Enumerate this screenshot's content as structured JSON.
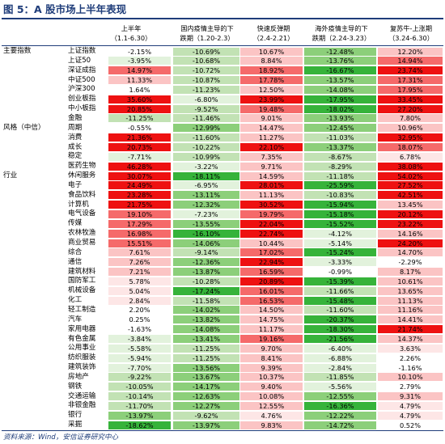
{
  "title": "图 5：A 股市场上半年表现",
  "source": "资料来源：Wind，安信证券研究中心",
  "colors": {
    "strong_red": "#ee1111",
    "mid_red": "#f56a6a",
    "light_red": "#fbc4c4",
    "pale_red": "#fde6e6",
    "white": "#ffffff",
    "pale_green": "#e2f2dc",
    "light_green": "#c2e2b4",
    "mid_green": "#8ccf7a",
    "strong_green": "#36b33a"
  },
  "chart_data": {
    "type": "table",
    "columns": [
      {
        "line1": "上半年",
        "line2": "（1.1-6.30）"
      },
      {
        "line1": "国内疫情主导的下",
        "line2": "跌期（1.20-2.3）"
      },
      {
        "line1": "快速反弹期",
        "line2": "（2.4-2.21）"
      },
      {
        "line1": "海外疫情主导的下",
        "line2": "跌期（2.24-3.23）"
      },
      {
        "line1": "复苏牛-上涨期",
        "line2": "（3.24-6.30）"
      }
    ],
    "groups": [
      {
        "label": "主要指数",
        "row": 0
      },
      {
        "label": "风格（中信）",
        "row": 8
      },
      {
        "label": "行业",
        "row": 13
      }
    ],
    "rows": [
      {
        "name": "上证指数",
        "values": [
          "-2.15%",
          "-10.69%",
          "10.67%",
          "-12.48%",
          "12.20%"
        ],
        "nums": [
          -2.15,
          -10.69,
          10.67,
          -12.48,
          12.2
        ]
      },
      {
        "name": "上证50",
        "values": [
          "-3.95%",
          "-10.68%",
          "8.84%",
          "-13.76%",
          "14.94%"
        ],
        "nums": [
          -3.95,
          -10.68,
          8.84,
          -13.76,
          14.94
        ]
      },
      {
        "name": "深证成指",
        "values": [
          "14.97%",
          "-10.72%",
          "18.92%",
          "-16.67%",
          "23.74%"
        ],
        "nums": [
          14.97,
          -10.72,
          18.92,
          -16.67,
          23.74
        ]
      },
      {
        "name": "中证500",
        "values": [
          "11.33%",
          "-10.87%",
          "17.78%",
          "-13.57%",
          "17.31%"
        ],
        "nums": [
          11.33,
          -10.87,
          17.78,
          -13.57,
          17.31
        ]
      },
      {
        "name": "沪深300",
        "values": [
          "1.64%",
          "-11.23%",
          "12.50%",
          "-14.08%",
          "17.95%"
        ],
        "nums": [
          1.64,
          -11.23,
          12.5,
          -14.08,
          17.95
        ]
      },
      {
        "name": "创业板指",
        "values": [
          "35.60%",
          "-6.80%",
          "23.99%",
          "-17.95%",
          "33.45%"
        ],
        "nums": [
          35.6,
          -6.8,
          23.99,
          -17.95,
          33.45
        ]
      },
      {
        "name": "中小板指",
        "values": [
          "20.85%",
          "-9.52%",
          "19.48%",
          "-18.02%",
          "27.20%"
        ],
        "nums": [
          20.85,
          -9.52,
          19.48,
          -18.02,
          27.2
        ]
      },
      {
        "name": "金融",
        "values": [
          "-11.25%",
          "-11.46%",
          "9.01%",
          "-13.93%",
          "7.80%"
        ],
        "nums": [
          -11.25,
          -11.46,
          9.01,
          -13.93,
          7.8
        ]
      },
      {
        "name": "周期",
        "values": [
          "-0.55%",
          "-12.99%",
          "14.47%",
          "-12.45%",
          "10.96%"
        ],
        "nums": [
          -0.55,
          -12.99,
          14.47,
          -12.45,
          10.96
        ]
      },
      {
        "name": "消费",
        "values": [
          "21.36%",
          "-11.60%",
          "11.27%",
          "-11.03%",
          "32.95%"
        ],
        "nums": [
          21.36,
          -11.6,
          11.27,
          -11.03,
          32.95
        ]
      },
      {
        "name": "成长",
        "values": [
          "20.73%",
          "-10.22%",
          "22.10%",
          "-13.37%",
          "18.07%"
        ],
        "nums": [
          20.73,
          -10.22,
          22.1,
          -13.37,
          18.07
        ]
      },
      {
        "name": "稳定",
        "values": [
          "-7.71%",
          "-10.99%",
          "7.35%",
          "-8.67%",
          "6.78%"
        ],
        "nums": [
          -7.71,
          -10.99,
          7.35,
          -8.67,
          6.78
        ]
      },
      {
        "name": "医药生物",
        "values": [
          "46.28%",
          "-3.22%",
          "9.71%",
          "-8.29%",
          "38.08%"
        ],
        "nums": [
          46.28,
          -3.22,
          9.71,
          -8.29,
          38.08
        ]
      },
      {
        "name": "休闲服务",
        "values": [
          "30.07%",
          "-18.11%",
          "14.59%",
          "-11.18%",
          "54.02%"
        ],
        "nums": [
          30.07,
          -18.11,
          14.59,
          -11.18,
          54.02
        ]
      },
      {
        "name": "电子",
        "values": [
          "24.49%",
          "-6.95%",
          "28.01%",
          "-25.59%",
          "27.52%"
        ],
        "nums": [
          24.49,
          -6.95,
          28.01,
          -25.59,
          27.52
        ]
      },
      {
        "name": "食品饮料",
        "values": [
          "23.28%",
          "-13.11%",
          "11.13%",
          "-10.83%",
          "42.51%"
        ],
        "nums": [
          23.28,
          -13.11,
          11.13,
          -10.83,
          42.51
        ]
      },
      {
        "name": "计算机",
        "values": [
          "21.75%",
          "-12.32%",
          "30.52%",
          "-15.94%",
          "13.45%"
        ],
        "nums": [
          21.75,
          -12.32,
          30.52,
          -15.94,
          13.45
        ]
      },
      {
        "name": "电气设备",
        "values": [
          "19.10%",
          "-7.23%",
          "19.79%",
          "-15.18%",
          "20.12%"
        ],
        "nums": [
          19.1,
          -7.23,
          19.79,
          -15.18,
          20.12
        ]
      },
      {
        "name": "传媒",
        "values": [
          "17.29%",
          "-13.55%",
          "22.04%",
          "-15.52%",
          "23.22%"
        ],
        "nums": [
          17.29,
          -13.55,
          22.04,
          -15.52,
          23.22
        ]
      },
      {
        "name": "农林牧渔",
        "values": [
          "16.98%",
          "-16.10%",
          "22.74%",
          "-4.12%",
          "14.16%"
        ],
        "nums": [
          16.98,
          -16.1,
          22.74,
          -4.12,
          14.16
        ]
      },
      {
        "name": "商业贸易",
        "values": [
          "15.51%",
          "-14.06%",
          "10.44%",
          "-5.14%",
          "24.20%"
        ],
        "nums": [
          15.51,
          -14.06,
          10.44,
          -5.14,
          24.2
        ]
      },
      {
        "name": "综合",
        "values": [
          "7.61%",
          "-9.14%",
          "17.02%",
          "-15.24%",
          "14.70%"
        ],
        "nums": [
          7.61,
          -9.14,
          17.02,
          -15.24,
          14.7
        ]
      },
      {
        "name": "通信",
        "values": [
          "7.26%",
          "-12.36%",
          "22.94%",
          "-3.33%",
          "-2.29%"
        ],
        "nums": [
          7.26,
          -12.36,
          22.94,
          -3.33,
          -2.29
        ]
      },
      {
        "name": "建筑材料",
        "values": [
          "7.21%",
          "-13.87%",
          "16.59%",
          "-0.99%",
          "8.17%"
        ],
        "nums": [
          7.21,
          -13.87,
          16.59,
          -0.99,
          8.17
        ]
      },
      {
        "name": "国防军工",
        "values": [
          "5.78%",
          "-10.28%",
          "20.89%",
          "-15.39%",
          "10.61%"
        ],
        "nums": [
          5.78,
          -10.28,
          20.89,
          -15.39,
          10.61
        ]
      },
      {
        "name": "机械设备",
        "values": [
          "5.04%",
          "-17.24%",
          "16.01%",
          "-11.66%",
          "13.65%"
        ],
        "nums": [
          5.04,
          -17.24,
          16.01,
          -11.66,
          13.65
        ]
      },
      {
        "name": "化工",
        "values": [
          "2.84%",
          "-11.58%",
          "16.53%",
          "-15.48%",
          "11.13%"
        ],
        "nums": [
          2.84,
          -11.58,
          16.53,
          -15.48,
          11.13
        ]
      },
      {
        "name": "轻工制造",
        "values": [
          "2.20%",
          "-14.02%",
          "14.50%",
          "-11.60%",
          "11.16%"
        ],
        "nums": [
          2.2,
          -14.02,
          14.5,
          -11.6,
          11.16
        ]
      },
      {
        "name": "汽车",
        "values": [
          "0.25%",
          "-13.82%",
          "14.75%",
          "-20.37%",
          "14.41%"
        ],
        "nums": [
          0.25,
          -13.82,
          14.75,
          -20.37,
          14.41
        ]
      },
      {
        "name": "家用电器",
        "values": [
          "-1.63%",
          "-14.08%",
          "11.17%",
          "-18.30%",
          "21.74%"
        ],
        "nums": [
          -1.63,
          -14.08,
          11.17,
          -18.3,
          21.74
        ]
      },
      {
        "name": "有色金属",
        "values": [
          "-3.84%",
          "-13.41%",
          "19.16%",
          "-21.56%",
          "14.37%"
        ],
        "nums": [
          -3.84,
          -13.41,
          19.16,
          -21.56,
          14.37
        ]
      },
      {
        "name": "公用事业",
        "values": [
          "-5.58%",
          "-11.25%",
          "9.70%",
          "-6.40%",
          "3.63%"
        ],
        "nums": [
          -5.58,
          -11.25,
          9.7,
          -6.4,
          3.63
        ]
      },
      {
        "name": "纺织服装",
        "values": [
          "-5.94%",
          "-11.25%",
          "8.41%",
          "-6.88%",
          "2.26%"
        ],
        "nums": [
          -5.94,
          -11.25,
          8.41,
          -6.88,
          2.26
        ]
      },
      {
        "name": "建筑装饰",
        "values": [
          "-7.70%",
          "-13.56%",
          "9.39%",
          "-2.84%",
          "-1.16%"
        ],
        "nums": [
          -7.7,
          -13.56,
          9.39,
          -2.84,
          -1.16
        ]
      },
      {
        "name": "房地产",
        "values": [
          "-9.22%",
          "-13.67%",
          "10.37%",
          "-11.85%",
          "10.10%"
        ],
        "nums": [
          -9.22,
          -13.67,
          10.37,
          -11.85,
          10.1
        ]
      },
      {
        "name": "钢铁",
        "values": [
          "-10.05%",
          "-14.17%",
          "9.40%",
          "-5.56%",
          "2.79%"
        ],
        "nums": [
          -10.05,
          -14.17,
          9.4,
          -5.56,
          2.79
        ]
      },
      {
        "name": "交通运输",
        "values": [
          "-10.14%",
          "-12.63%",
          "10.08%",
          "-12.55%",
          "9.31%"
        ],
        "nums": [
          -10.14,
          -12.63,
          10.08,
          -12.55,
          9.31
        ]
      },
      {
        "name": "非银金融",
        "values": [
          "-11.70%",
          "-12.27%",
          "12.55%",
          "-16.36%",
          "4.79%"
        ],
        "nums": [
          -11.7,
          -12.27,
          12.55,
          -16.36,
          4.79
        ]
      },
      {
        "name": "银行",
        "values": [
          "-13.97%",
          "-9.62%",
          "4.76%",
          "-12.22%",
          "4.79%"
        ],
        "nums": [
          -13.97,
          -9.62,
          4.76,
          -12.22,
          4.79
        ]
      },
      {
        "name": "采掘",
        "values": [
          "-18.62%",
          "-13.97%",
          "9.83%",
          "-14.72%",
          "0.52%"
        ],
        "nums": [
          -18.62,
          -13.97,
          9.83,
          -14.72,
          0.52
        ]
      }
    ]
  }
}
